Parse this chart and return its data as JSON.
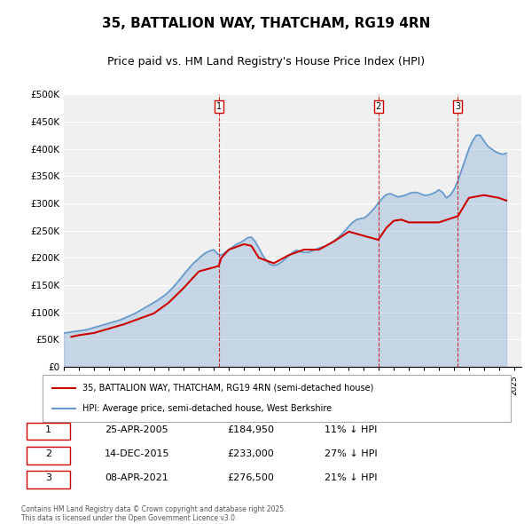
{
  "title_line1": "35, BATTALION WAY, THATCHAM, RG19 4RN",
  "title_line2": "Price paid vs. HM Land Registry's House Price Index (HPI)",
  "ylabel": "",
  "ylim": [
    0,
    500000
  ],
  "yticks": [
    0,
    50000,
    100000,
    150000,
    200000,
    250000,
    300000,
    350000,
    400000,
    450000,
    500000
  ],
  "ytick_labels": [
    "£0",
    "£50K",
    "£100K",
    "£150K",
    "£200K",
    "£250K",
    "£300K",
    "£350K",
    "£400K",
    "£450K",
    "£500K"
  ],
  "background_color": "#ffffff",
  "plot_bg_color": "#f0f0f0",
  "hpi_color": "#6699cc",
  "price_color": "#cc0000",
  "vline_color": "#cc0000",
  "transaction_dates": [
    2005.32,
    2015.96,
    2021.27
  ],
  "transaction_prices": [
    184950,
    233000,
    276500
  ],
  "transaction_labels": [
    "1",
    "2",
    "3"
  ],
  "legend_label_price": "35, BATTALION WAY, THATCHAM, RG19 4RN (semi-detached house)",
  "legend_label_hpi": "HPI: Average price, semi-detached house, West Berkshire",
  "table_data": [
    [
      "1",
      "25-APR-2005",
      "£184,950",
      "11% ↓ HPI"
    ],
    [
      "2",
      "14-DEC-2015",
      "£233,000",
      "27% ↓ HPI"
    ],
    [
      "3",
      "08-APR-2021",
      "£276,500",
      "21% ↓ HPI"
    ]
  ],
  "footer": "Contains HM Land Registry data © Crown copyright and database right 2025.\nThis data is licensed under the Open Government Licence v3.0.",
  "hpi_years": [
    1995,
    1995.25,
    1995.5,
    1995.75,
    1996,
    1996.25,
    1996.5,
    1996.75,
    1997,
    1997.25,
    1997.5,
    1997.75,
    1998,
    1998.25,
    1998.5,
    1998.75,
    1999,
    1999.25,
    1999.5,
    1999.75,
    2000,
    2000.25,
    2000.5,
    2000.75,
    2001,
    2001.25,
    2001.5,
    2001.75,
    2002,
    2002.25,
    2002.5,
    2002.75,
    2003,
    2003.25,
    2003.5,
    2003.75,
    2004,
    2004.25,
    2004.5,
    2004.75,
    2005,
    2005.25,
    2005.5,
    2005.75,
    2006,
    2006.25,
    2006.5,
    2006.75,
    2007,
    2007.25,
    2007.5,
    2007.75,
    2008,
    2008.25,
    2008.5,
    2008.75,
    2009,
    2009.25,
    2009.5,
    2009.75,
    2010,
    2010.25,
    2010.5,
    2010.75,
    2011,
    2011.25,
    2011.5,
    2011.75,
    2012,
    2012.25,
    2012.5,
    2012.75,
    2013,
    2013.25,
    2013.5,
    2013.75,
    2014,
    2014.25,
    2014.5,
    2014.75,
    2015,
    2015.25,
    2015.5,
    2015.75,
    2016,
    2016.25,
    2016.5,
    2016.75,
    2017,
    2017.25,
    2017.5,
    2017.75,
    2018,
    2018.25,
    2018.5,
    2018.75,
    2019,
    2019.25,
    2019.5,
    2019.75,
    2020,
    2020.25,
    2020.5,
    2020.75,
    2021,
    2021.25,
    2021.5,
    2021.75,
    2022,
    2022.25,
    2022.5,
    2022.75,
    2023,
    2023.25,
    2023.5,
    2023.75,
    2024,
    2024.25,
    2024.5
  ],
  "hpi_values": [
    62000,
    63000,
    64000,
    65000,
    66000,
    67000,
    68000,
    70000,
    72000,
    74000,
    76000,
    78000,
    80000,
    82000,
    84000,
    86000,
    89000,
    92000,
    95000,
    98000,
    102000,
    106000,
    110000,
    114000,
    118000,
    122000,
    127000,
    132000,
    138000,
    145000,
    153000,
    161000,
    170000,
    178000,
    186000,
    193000,
    199000,
    205000,
    210000,
    213000,
    215000,
    207000,
    205000,
    210000,
    215000,
    220000,
    225000,
    228000,
    232000,
    237000,
    238000,
    230000,
    218000,
    205000,
    195000,
    188000,
    186000,
    188000,
    192000,
    198000,
    204000,
    210000,
    214000,
    212000,
    210000,
    210000,
    212000,
    215000,
    218000,
    220000,
    222000,
    226000,
    231000,
    236000,
    243000,
    250000,
    258000,
    265000,
    270000,
    272000,
    273000,
    278000,
    285000,
    293000,
    302000,
    310000,
    316000,
    318000,
    315000,
    312000,
    313000,
    315000,
    318000,
    320000,
    320000,
    318000,
    315000,
    315000,
    317000,
    320000,
    325000,
    320000,
    310000,
    315000,
    325000,
    340000,
    360000,
    380000,
    400000,
    415000,
    425000,
    425000,
    415000,
    405000,
    400000,
    395000,
    392000,
    390000,
    392000
  ],
  "price_years": [
    1995.5,
    1996.0,
    1997.0,
    1997.5,
    1998.0,
    1999.0,
    2000.0,
    2001.0,
    2002.0,
    2003.0,
    2004.0,
    2005.32,
    2005.5,
    2006.0,
    2007.0,
    2007.5,
    2008.0,
    2009.0,
    2010.0,
    2011.0,
    2012.0,
    2013.0,
    2014.0,
    2015.96,
    2016.5,
    2017.0,
    2017.5,
    2018.0,
    2019.0,
    2020.0,
    2021.27,
    2022.0,
    2023.0,
    2024.0,
    2024.5
  ],
  "price_values": [
    55000,
    58000,
    62000,
    66000,
    70000,
    78000,
    88000,
    98000,
    118000,
    145000,
    175000,
    184950,
    200000,
    215000,
    225000,
    222000,
    200000,
    190000,
    205000,
    215000,
    215000,
    230000,
    248000,
    233000,
    255000,
    268000,
    270000,
    265000,
    265000,
    265000,
    276500,
    310000,
    315000,
    310000,
    305000
  ]
}
